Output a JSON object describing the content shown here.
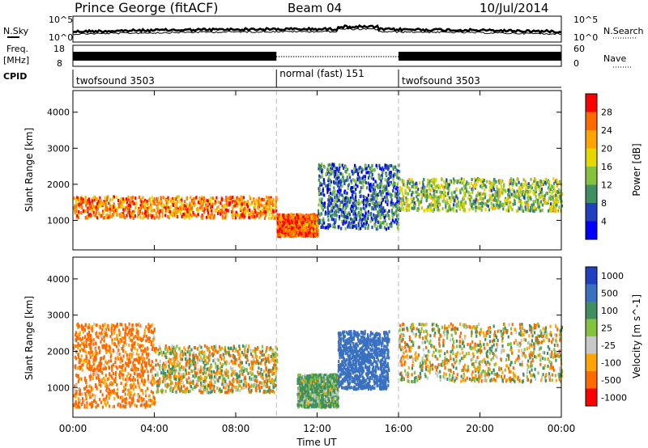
{
  "header": {
    "station": "Prince George (fitACF)",
    "beam": "Beam 04",
    "date": "10/Jul/2014"
  },
  "noise_panel": {
    "left_label": "N.Sky",
    "right_label": "N.Search",
    "left_ticks": [
      "10^5",
      "10^0"
    ],
    "right_ticks": [
      "10^5",
      "10^0"
    ]
  },
  "freq_panel": {
    "left_label_1": "Freq.",
    "left_label_2": "[MHz]",
    "left_ticks": [
      "18",
      "8"
    ],
    "right_label": "Nave",
    "right_ticks": [
      "60",
      "0"
    ]
  },
  "cpid": {
    "label": "CPID",
    "segments": [
      {
        "label": "twofsound 3503",
        "start_hour": 0,
        "end_hour": 10
      },
      {
        "label": "normal (fast) 151",
        "start_hour": 10,
        "end_hour": 16
      },
      {
        "label": "twofsound 3503",
        "start_hour": 16,
        "end_hour": 24
      }
    ]
  },
  "chart_data": [
    {
      "type": "heatmap",
      "quantity": "power",
      "ylabel": "Slant Range [km]",
      "yticks": [
        1000,
        2000,
        3000,
        4000
      ],
      "xlim": [
        0,
        24
      ],
      "ylim": [
        180,
        4600
      ],
      "colorbar_label": "Power [dB]",
      "colorbar_ticks": [
        "28",
        "24",
        "20",
        "16",
        "12",
        "8",
        "4"
      ],
      "colorbar_colors": [
        "#ff0000",
        "#ff6a00",
        "#ffa400",
        "#e5d800",
        "#85c240",
        "#3f8f60",
        "#2040c0",
        "#0000ff"
      ],
      "echo_bands": [
        {
          "hours": [
            0,
            10
          ],
          "range_km": [
            1100,
            1700
          ],
          "power_db": 24
        },
        {
          "hours": [
            10,
            12
          ],
          "range_km": [
            600,
            1200
          ],
          "power_db": 26
        },
        {
          "hours": [
            12,
            16
          ],
          "range_km": [
            800,
            2600
          ],
          "power_db": 8
        },
        {
          "hours": [
            16,
            24
          ],
          "range_km": [
            1300,
            2200
          ],
          "power_db": 14
        }
      ]
    },
    {
      "type": "heatmap",
      "quantity": "velocity",
      "ylabel": "Slant Range [km]",
      "yticks": [
        1000,
        2000,
        3000,
        4000
      ],
      "xlim": [
        0,
        24
      ],
      "ylim": [
        180,
        4600
      ],
      "colorbar_label": "Velocity [m s^-1]",
      "colorbar_ticks": [
        "1000",
        "500",
        "100",
        "25",
        "-25",
        "-100",
        "-500",
        "-1000"
      ],
      "colorbar_colors": [
        "#2040c0",
        "#3a70c0",
        "#3f8f60",
        "#85c240",
        "#c8c8c8",
        "#ffa400",
        "#ff6a00",
        "#ff0000"
      ],
      "echo_bands": [
        {
          "hours": [
            0,
            4
          ],
          "range_km": [
            500,
            2800
          ],
          "velocity_ms": -200
        },
        {
          "hours": [
            4,
            10
          ],
          "range_km": [
            900,
            2200
          ],
          "velocity_ms": 0
        },
        {
          "hours": [
            11,
            13
          ],
          "range_km": [
            500,
            1400
          ],
          "velocity_ms": 150
        },
        {
          "hours": [
            13,
            15.5
          ],
          "range_km": [
            1000,
            2600
          ],
          "velocity_ms": 800
        },
        {
          "hours": [
            16,
            24
          ],
          "range_km": [
            1200,
            2800
          ],
          "velocity_ms": 0
        }
      ]
    }
  ],
  "x_axis": {
    "tick_labels": [
      "00:00",
      "04:00",
      "08:00",
      "12:00",
      "16:00",
      "20:00",
      "00:00"
    ],
    "tick_hours": [
      0,
      4,
      8,
      12,
      16,
      20,
      24
    ],
    "label": "Time UT"
  }
}
